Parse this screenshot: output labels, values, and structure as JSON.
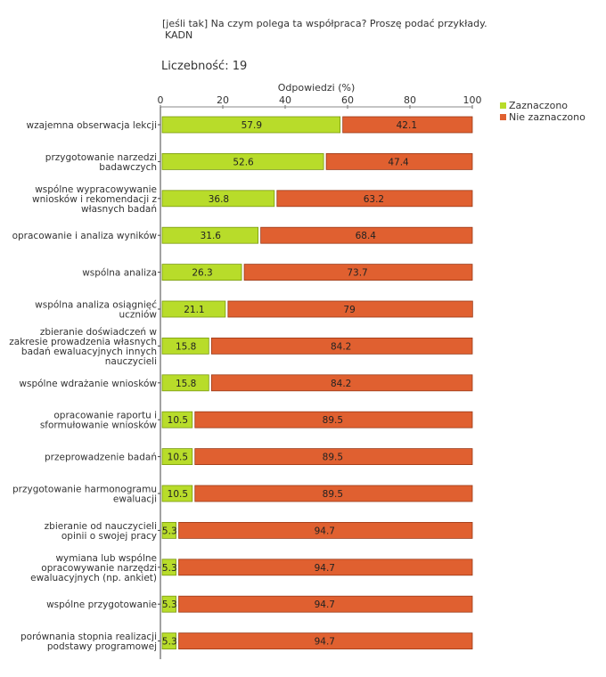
{
  "header": {
    "question": "[jeśli tak] Na czym polega ta współpraca? Proszę podać przykłady.",
    "code": "KADN",
    "count_label": "Liczebność: 19"
  },
  "chart_data": {
    "type": "bar",
    "orientation": "horizontal",
    "stacked": true,
    "xlabel": "Odpowiedzi (%)",
    "xlim": [
      0,
      100
    ],
    "xticks": [
      0,
      20,
      40,
      60,
      80,
      100
    ],
    "legend_position": "top-right",
    "categories": [
      [
        "wzajemna obserwacja lekcji"
      ],
      [
        "przygotowanie narzedzi",
        "badawczych"
      ],
      [
        "wspólne wypracowywanie",
        "wniosków i rekomendacji z",
        "własnych badań"
      ],
      [
        "opracowanie i analiza wyników"
      ],
      [
        "wspólna analiza"
      ],
      [
        "wspólna analiza osiągnięć",
        "uczniów"
      ],
      [
        "zbieranie doświadczeń w",
        "zakresie prowadzenia własnych",
        "badań ewaluacyjnych innych",
        "nauczycieli"
      ],
      [
        "wspólne wdrażanie wniosków"
      ],
      [
        "opracowanie raportu i",
        "sformułowanie wniosków"
      ],
      [
        "przeprowadzenie badań"
      ],
      [
        "przygotowanie harmonogramu",
        "ewaluacji"
      ],
      [
        "zbieranie od nauczycieli",
        "opinii o swojej pracy"
      ],
      [
        "wymiana lub wspólne",
        "opracowywanie narzędzi",
        "ewaluacyjnych (np. ankiet)"
      ],
      [
        "wspólne przygotowanie"
      ],
      [
        "porównania stopnia realizacji",
        "podstawy programowej"
      ]
    ],
    "series": [
      {
        "name": "Zaznaczono",
        "color": "#b8dc2a",
        "values": [
          57.9,
          52.6,
          36.8,
          31.6,
          26.3,
          21.1,
          15.8,
          15.8,
          10.5,
          10.5,
          10.5,
          5.3,
          5.3,
          5.3,
          5.3
        ]
      },
      {
        "name": "Nie zaznaczono",
        "color": "#e06030",
        "values": [
          42.1,
          47.4,
          63.2,
          68.4,
          73.7,
          79,
          84.2,
          84.2,
          89.5,
          89.5,
          89.5,
          94.7,
          94.7,
          94.7,
          94.7
        ]
      }
    ]
  }
}
